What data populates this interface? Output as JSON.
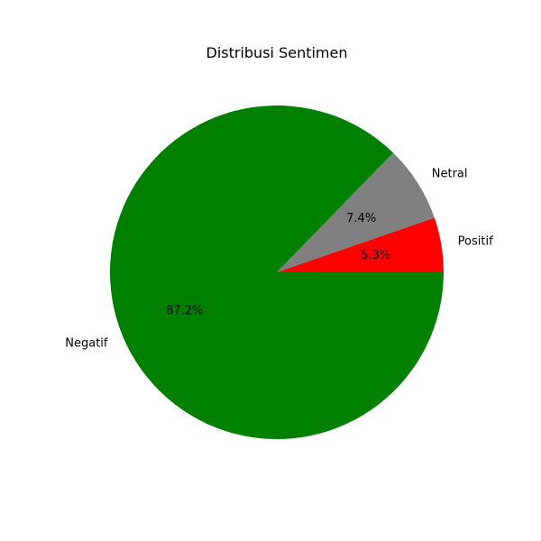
{
  "chart_data": {
    "type": "pie",
    "title": "Distribusi Sentimen",
    "slices": [
      {
        "label": "Positif",
        "percent_label": "5.3%",
        "value": 5.3,
        "color": "#ff0000"
      },
      {
        "label": "Netral",
        "percent_label": "7.4%",
        "value": 7.4,
        "color": "#808080"
      },
      {
        "label": "Negatif",
        "percent_label": "87.2%",
        "value": 87.2,
        "color": "#008000"
      }
    ],
    "start_angle_deg": 0,
    "direction": "counterclockwise",
    "legend": "none"
  }
}
